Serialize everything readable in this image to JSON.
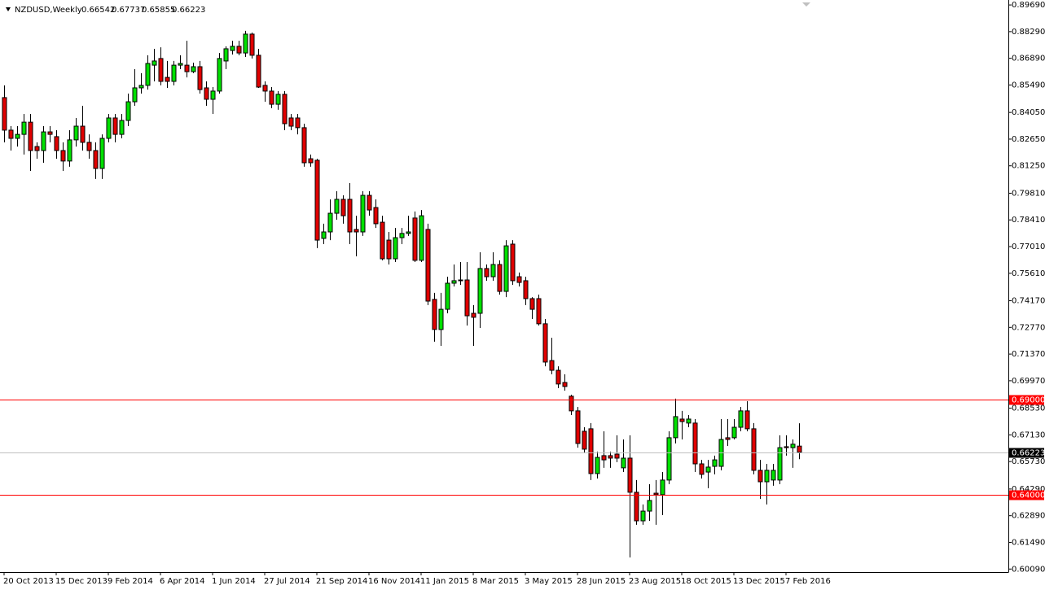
{
  "chart_data": {
    "type": "candlestick",
    "title": "NZDUSD,Weekly",
    "categories": [
      "20 Oct 2013",
      null,
      null,
      null,
      null,
      null,
      null,
      null,
      "15 Dec 2013",
      null,
      null,
      null,
      null,
      null,
      null,
      null,
      "9 Feb 2014",
      null,
      null,
      null,
      null,
      null,
      null,
      null,
      "6 Apr 2014",
      null,
      null,
      null,
      null,
      null,
      null,
      null,
      "1 Jun 2014",
      null,
      null,
      null,
      null,
      null,
      null,
      null,
      "27 Jul 2014",
      null,
      null,
      null,
      null,
      null,
      null,
      null,
      "21 Sep 2014",
      null,
      null,
      null,
      null,
      null,
      null,
      null,
      "16 Nov 2014",
      null,
      null,
      null,
      null,
      null,
      null,
      null,
      "11 Jan 2015",
      null,
      null,
      null,
      null,
      null,
      null,
      null,
      "8 Mar 2015",
      null,
      null,
      null,
      null,
      null,
      null,
      null,
      "3 May 2015",
      null,
      null,
      null,
      null,
      null,
      null,
      null,
      "28 Jun 2015",
      null,
      null,
      null,
      null,
      null,
      null,
      null,
      "23 Aug 2015",
      null,
      null,
      null,
      null,
      null,
      null,
      null,
      "18 Oct 2015",
      null,
      null,
      null,
      null,
      null,
      null,
      null,
      "13 Dec 2015",
      null,
      null,
      null,
      null,
      null,
      null,
      null,
      "7 Feb 2016",
      null,
      null
    ],
    "open": [
      0.8483,
      0.8312,
      0.8269,
      0.829,
      0.8354,
      0.8226,
      0.8205,
      0.8303,
      0.8278,
      0.8205,
      0.815,
      0.8261,
      0.8333,
      0.8248,
      0.8205,
      0.8111,
      0.8269,
      0.8376,
      0.829,
      0.8363,
      0.8461,
      0.8534,
      0.8547,
      0.8653,
      0.8688,
      0.8589,
      0.8568,
      0.8653,
      0.8653,
      0.8619,
      0.8645,
      0.8534,
      0.8474,
      0.8517,
      0.8675,
      0.873,
      0.8752,
      0.8717,
      0.8816,
      0.8705,
      0.8547,
      0.8517,
      0.8448,
      0.85,
      0.8376,
      0.8376,
      0.8325,
      0.8162,
      0.8154,
      0.7744,
      0.7778,
      0.7876,
      0.7949,
      0.7949,
      0.7791,
      0.7778,
      0.797,
      0.7906,
      0.7829,
      0.7735,
      0.7637,
      0.7748,
      0.777,
      0.7851,
      0.7629,
      0.7791,
      0.7424,
      0.7266,
      0.7372,
      0.7509,
      0.7522,
      0.7526,
      0.7351,
      0.7351,
      0.7586,
      0.7543,
      0.7607,
      0.7466,
      0.7714,
      0.7543,
      0.7522,
      0.7428,
      0.7428,
      0.7296,
      0.7103,
      0.7052,
      0.6988,
      0.6916,
      0.6839,
      0.6732,
      0.6745,
      0.651,
      0.6604,
      0.6604,
      0.6612,
      0.654,
      0.6591,
      0.6412,
      0.6262,
      0.6313,
      0.6407,
      0.6399,
      0.6476,
      0.6698,
      0.6796,
      0.6775,
      0.6775,
      0.6561,
      0.6518,
      0.6548,
      0.6548,
      0.6698,
      0.6698,
      0.6753,
      0.6839,
      0.6745,
      0.6527,
      0.6467,
      0.6476,
      0.6476,
      0.6651,
      0.6646,
      0.66542
    ],
    "high": [
      0.8547,
      0.8333,
      0.8333,
      0.8397,
      0.8397,
      0.8248,
      0.8333,
      0.8333,
      0.8312,
      0.8248,
      0.8312,
      0.8376,
      0.844,
      0.829,
      0.8248,
      0.829,
      0.8397,
      0.8397,
      0.8397,
      0.8504,
      0.8632,
      0.8611,
      0.8705,
      0.8739,
      0.8747,
      0.8675,
      0.8675,
      0.8705,
      0.8781,
      0.8666,
      0.8675,
      0.8568,
      0.8538,
      0.8717,
      0.8752,
      0.8781,
      0.8781,
      0.8833,
      0.8824,
      0.8739,
      0.8568,
      0.8538,
      0.8517,
      0.8517,
      0.8397,
      0.8397,
      0.8346,
      0.8184,
      0.8162,
      0.7821,
      0.7949,
      0.7992,
      0.797,
      0.8034,
      0.7863,
      0.7992,
      0.7992,
      0.7949,
      0.7863,
      0.7778,
      0.7799,
      0.7799,
      0.7863,
      0.7885,
      0.7893,
      0.7821,
      0.7458,
      0.7458,
      0.7543,
      0.7607,
      0.762,
      0.762,
      0.7394,
      0.7671,
      0.7607,
      0.7671,
      0.7629,
      0.7735,
      0.7735,
      0.7565,
      0.7543,
      0.7436,
      0.7449,
      0.7321,
      0.7223,
      0.7073,
      0.7031,
      0.6924,
      0.686,
      0.6753,
      0.6775,
      0.6625,
      0.6732,
      0.6625,
      0.6711,
      0.6689,
      0.6711,
      0.6476,
      0.6348,
      0.6454,
      0.6476,
      0.6518,
      0.6732,
      0.6903,
      0.6839,
      0.6817,
      0.6796,
      0.6582,
      0.6582,
      0.6604,
      0.6796,
      0.6796,
      0.6796,
      0.686,
      0.689,
      0.6775,
      0.6582,
      0.6561,
      0.6561,
      0.6711,
      0.6711,
      0.6689,
      0.67737
    ],
    "low": [
      0.8248,
      0.8205,
      0.8226,
      0.8184,
      0.8098,
      0.8162,
      0.8141,
      0.8248,
      0.8162,
      0.8098,
      0.812,
      0.8226,
      0.8205,
      0.8162,
      0.8056,
      0.8056,
      0.8248,
      0.8248,
      0.8269,
      0.8333,
      0.844,
      0.8504,
      0.8525,
      0.8568,
      0.8547,
      0.8534,
      0.8547,
      0.8632,
      0.8589,
      0.8611,
      0.8504,
      0.844,
      0.8397,
      0.8504,
      0.8632,
      0.8709,
      0.8705,
      0.8696,
      0.8688,
      0.8534,
      0.8461,
      0.8427,
      0.8419,
      0.8312,
      0.8312,
      0.829,
      0.812,
      0.812,
      0.7693,
      0.7714,
      0.7735,
      0.7842,
      0.7821,
      0.7714,
      0.765,
      0.7757,
      0.7863,
      0.7799,
      0.7629,
      0.7607,
      0.762,
      0.7714,
      0.7757,
      0.762,
      0.762,
      0.7394,
      0.7202,
      0.718,
      0.7351,
      0.7492,
      0.75,
      0.7287,
      0.718,
      0.7274,
      0.7522,
      0.7522,
      0.7449,
      0.7436,
      0.75,
      0.7492,
      0.7394,
      0.7321,
      0.7287,
      0.7073,
      0.7031,
      0.6958,
      0.6945,
      0.6817,
      0.6646,
      0.6621,
      0.6476,
      0.6484,
      0.654,
      0.654,
      0.657,
      0.6518,
      0.607,
      0.6241,
      0.6241,
      0.6262,
      0.6241,
      0.6292,
      0.6454,
      0.6668,
      0.6689,
      0.6753,
      0.6518,
      0.6484,
      0.6433,
      0.6506,
      0.6527,
      0.6655,
      0.6689,
      0.6732,
      0.6732,
      0.6506,
      0.6377,
      0.6348,
      0.6446,
      0.6454,
      0.6604,
      0.654,
      0.65855
    ],
    "close": [
      0.8312,
      0.8269,
      0.829,
      0.8354,
      0.8205,
      0.8205,
      0.8303,
      0.829,
      0.8205,
      0.815,
      0.8261,
      0.8333,
      0.8248,
      0.8205,
      0.8111,
      0.8269,
      0.8376,
      0.829,
      0.8363,
      0.8461,
      0.8534,
      0.8547,
      0.8662,
      0.8675,
      0.8568,
      0.8568,
      0.8653,
      0.8662,
      0.8619,
      0.8645,
      0.8525,
      0.8474,
      0.8517,
      0.8688,
      0.8739,
      0.8752,
      0.8717,
      0.8816,
      0.8705,
      0.8538,
      0.8517,
      0.8448,
      0.85,
      0.8346,
      0.8333,
      0.8325,
      0.8141,
      0.8141,
      0.7735,
      0.7778,
      0.7876,
      0.7949,
      0.7863,
      0.7778,
      0.7778,
      0.797,
      0.7893,
      0.7821,
      0.7637,
      0.7637,
      0.7748,
      0.777,
      0.7778,
      0.7629,
      0.7863,
      0.7415,
      0.7266,
      0.7372,
      0.7509,
      0.7522,
      0.7526,
      0.7338,
      0.733,
      0.7586,
      0.7543,
      0.7607,
      0.7466,
      0.7705,
      0.7522,
      0.7513,
      0.7428,
      0.7372,
      0.7296,
      0.7095,
      0.7052,
      0.698,
      0.6967,
      0.6839,
      0.6668,
      0.6638,
      0.651,
      0.6595,
      0.6582,
      0.6591,
      0.6591,
      0.6591,
      0.6412,
      0.6262,
      0.6313,
      0.6369,
      0.6399,
      0.6476,
      0.6698,
      0.6809,
      0.6783,
      0.6796,
      0.6561,
      0.6506,
      0.6544,
      0.6582,
      0.6689,
      0.6689,
      0.6753,
      0.6839,
      0.6745,
      0.6527,
      0.6467,
      0.6527,
      0.6527,
      0.6646,
      0.6646,
      0.6664,
      0.66223
    ],
    "up_color": "#00e000",
    "down_color": "#e00000",
    "ylim": [
      0.5993,
      0.8995
    ],
    "yticks": [
      {
        "value": 0.8969,
        "label": "0.89690"
      },
      {
        "value": 0.8829,
        "label": "0.88290"
      },
      {
        "value": 0.8689,
        "label": "0.86890"
      },
      {
        "value": 0.8549,
        "label": "0.85490"
      },
      {
        "value": 0.8405,
        "label": "0.84050"
      },
      {
        "value": 0.8265,
        "label": "0.82650"
      },
      {
        "value": 0.8125,
        "label": "0.81250"
      },
      {
        "value": 0.7981,
        "label": "0.79810"
      },
      {
        "value": 0.7841,
        "label": "0.78410"
      },
      {
        "value": 0.7701,
        "label": "0.77010"
      },
      {
        "value": 0.7561,
        "label": "0.75610"
      },
      {
        "value": 0.7417,
        "label": "0.74170"
      },
      {
        "value": 0.7277,
        "label": "0.72770"
      },
      {
        "value": 0.7137,
        "label": "0.71370"
      },
      {
        "value": 0.6997,
        "label": "0.69970"
      },
      {
        "value": 0.6853,
        "label": "0.68530"
      },
      {
        "value": 0.6713,
        "label": "0.67130"
      },
      {
        "value": 0.6573,
        "label": "0.65730"
      },
      {
        "value": 0.6429,
        "label": "0.64290"
      },
      {
        "value": 0.6289,
        "label": "0.62890"
      },
      {
        "value": 0.6149,
        "label": "0.61490"
      },
      {
        "value": 0.6009,
        "label": "0.60090"
      }
    ],
    "hlines": [
      {
        "value": 0.69,
        "label": "0.69000",
        "color": "#ff0000"
      },
      {
        "value": 0.64,
        "label": "0.64000",
        "color": "#ff0000"
      }
    ],
    "current_price": {
      "value": 0.66223,
      "label": "0.66223",
      "color": "#c0c0c0"
    }
  }
}
